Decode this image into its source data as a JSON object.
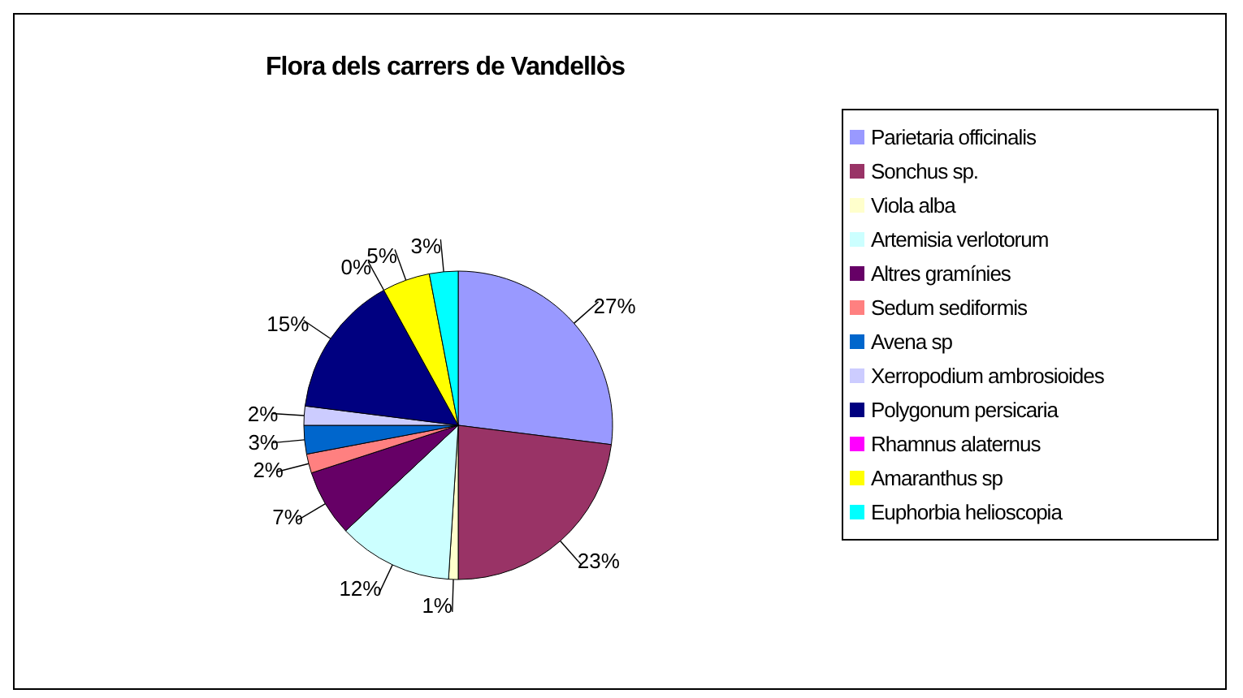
{
  "chart_data": {
    "type": "pie",
    "title": "Flora dels carrers de Vandellòs",
    "categories": [
      "Parietaria officinalis",
      "Sonchus sp.",
      "Viola alba",
      "Artemisia verlotorum",
      "Altres gramínies",
      "Sedum sediformis",
      "Avena sp",
      "Xerropodium ambrosioides",
      "Polygonum persicaria",
      "Rhamnus alaternus",
      "Amaranthus sp",
      "Euphorbia helioscopia"
    ],
    "values": [
      27,
      23,
      1,
      12,
      7,
      2,
      3,
      2,
      15,
      0,
      5,
      3
    ],
    "colors": [
      "#9999ff",
      "#993366",
      "#ffffcc",
      "#ccffff",
      "#660066",
      "#ff8080",
      "#0066cc",
      "#ccccff",
      "#000080",
      "#ff00ff",
      "#ffff00",
      "#00ffff"
    ],
    "value_labels": [
      "27%",
      "23%",
      "1%",
      "12%",
      "7%",
      "2%",
      "3%",
      "2%",
      "15%",
      "0%",
      "5%",
      "3%"
    ],
    "legend": "right"
  }
}
